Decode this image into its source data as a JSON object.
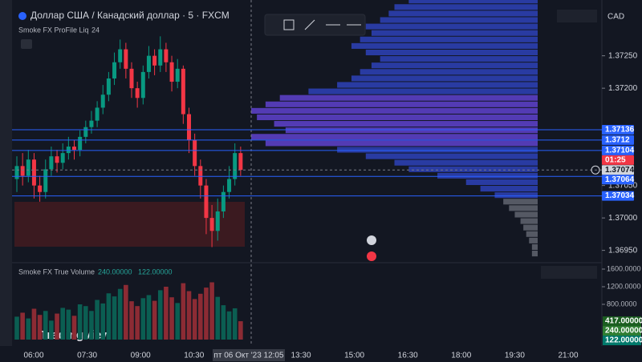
{
  "header": {
    "symbol": "Доллар США / Канадский доллар · 5 · FXCM",
    "indicator": "Smoke FX ProFile Liq",
    "indicator_param": "24",
    "currency": "CAD"
  },
  "chart_data": {
    "type": "candlestick",
    "ylim": [
      1.36931,
      1.37336
    ],
    "price_ticks": [
      {
        "value": 1.3725,
        "label": "1.37250"
      },
      {
        "value": 1.372,
        "label": "1.37200"
      },
      {
        "value": 1.3705,
        "label": "1.37050"
      },
      {
        "value": 1.37,
        "label": "1.37000"
      },
      {
        "value": 1.3695,
        "label": "1.36950"
      }
    ],
    "candles": [
      [
        1.3706,
        1.37095,
        1.3704,
        1.3708
      ],
      [
        1.3708,
        1.371,
        1.3705,
        1.37065
      ],
      [
        1.37065,
        1.37105,
        1.37055,
        1.3709
      ],
      [
        1.3709,
        1.371,
        1.3703,
        1.3705
      ],
      [
        1.3705,
        1.37065,
        1.37025,
        1.3704
      ],
      [
        1.3704,
        1.3709,
        1.3703,
        1.37075
      ],
      [
        1.37075,
        1.3711,
        1.37065,
        1.37095
      ],
      [
        1.37095,
        1.37105,
        1.3707,
        1.37085
      ],
      [
        1.37085,
        1.37115,
        1.37075,
        1.371
      ],
      [
        1.371,
        1.37125,
        1.3709,
        1.3711
      ],
      [
        1.3711,
        1.3712,
        1.3709,
        1.37105
      ],
      [
        1.37105,
        1.37135,
        1.37095,
        1.37125
      ],
      [
        1.37125,
        1.3715,
        1.37115,
        1.3714
      ],
      [
        1.3714,
        1.37165,
        1.3713,
        1.3715
      ],
      [
        1.3715,
        1.3718,
        1.3714,
        1.3717
      ],
      [
        1.3717,
        1.37205,
        1.3716,
        1.3719
      ],
      [
        1.3719,
        1.37225,
        1.3718,
        1.37215
      ],
      [
        1.37215,
        1.37255,
        1.37205,
        1.3724
      ],
      [
        1.3724,
        1.37275,
        1.3723,
        1.3726
      ],
      [
        1.3726,
        1.3727,
        1.37215,
        1.3723
      ],
      [
        1.3723,
        1.3724,
        1.37185,
        1.372
      ],
      [
        1.372,
        1.3721,
        1.3717,
        1.37185
      ],
      [
        1.37185,
        1.37235,
        1.37175,
        1.37225
      ],
      [
        1.37225,
        1.37265,
        1.37215,
        1.3725
      ],
      [
        1.3725,
        1.3726,
        1.3722,
        1.37235
      ],
      [
        1.37235,
        1.3728,
        1.37225,
        1.3726
      ],
      [
        1.3726,
        1.3727,
        1.37225,
        1.3724
      ],
      [
        1.3724,
        1.3725,
        1.37195,
        1.3721
      ],
      [
        1.3721,
        1.37245,
        1.372,
        1.3723
      ],
      [
        1.3723,
        1.37235,
        1.37145,
        1.3716
      ],
      [
        1.3716,
        1.3717,
        1.371,
        1.3712
      ],
      [
        1.3712,
        1.3713,
        1.37065,
        1.3708
      ],
      [
        1.3708,
        1.3709,
        1.3703,
        1.3705
      ],
      [
        1.3705,
        1.3706,
        1.36975,
        1.37
      ],
      [
        1.37,
        1.3702,
        1.36955,
        1.3698
      ],
      [
        1.3698,
        1.3703,
        1.36965,
        1.3701
      ],
      [
        1.3701,
        1.3705,
        1.37,
        1.3704
      ],
      [
        1.3704,
        1.3708,
        1.3703,
        1.3706
      ],
      [
        1.3706,
        1.37115,
        1.3705,
        1.371
      ],
      [
        1.371,
        1.3711,
        1.37065,
        1.37074
      ]
    ],
    "levels": [
      1.37136,
      1.3712,
      1.37104,
      1.37064,
      1.37034
    ],
    "level_color": "#2962ff",
    "last_price": 1.37074,
    "countdown": "01:25",
    "time_ticks": [
      "06:00",
      "07:30",
      "09:00",
      "10:30",
      "13:30",
      "15:00",
      "16:30",
      "18:00",
      "19:30",
      "21:00"
    ],
    "crosshair_time": "пт 06 Окт '23 12:05",
    "volume_profile": {
      "prices": [
        1.37335,
        1.37325,
        1.37315,
        1.37305,
        1.37295,
        1.37285,
        1.37275,
        1.37265,
        1.37255,
        1.37245,
        1.37235,
        1.37225,
        1.37215,
        1.37205,
        1.37195,
        1.37185,
        1.37175,
        1.37165,
        1.37155,
        1.37145,
        1.37135,
        1.37125,
        1.37115,
        1.37105,
        1.37095,
        1.37085,
        1.37075,
        1.37065,
        1.37055,
        1.37045,
        1.37035,
        1.37025,
        1.37015,
        1.37005,
        1.36995,
        1.36985,
        1.36975,
        1.36965,
        1.36955,
        1.36945
      ],
      "values": [
        45,
        50,
        52,
        55,
        60,
        58,
        62,
        65,
        60,
        55,
        58,
        62,
        65,
        70,
        80,
        90,
        95,
        100,
        98,
        92,
        88,
        100,
        95,
        70,
        60,
        50,
        45,
        35,
        25,
        20,
        15,
        12,
        10,
        8,
        6,
        5,
        4,
        3,
        2,
        2
      ]
    },
    "volume": {
      "title": "Smoke FX True Volume",
      "legend_values": [
        "240.00000",
        "122.00000"
      ],
      "values": [
        520,
        610,
        480,
        700,
        560,
        650,
        430,
        590,
        720,
        680,
        540,
        800,
        760,
        650,
        900,
        820,
        1050,
        980,
        1150,
        1240,
        870,
        760,
        940,
        1010,
        880,
        1120,
        1200,
        960,
        830,
        1280,
        1100,
        920,
        1040,
        1180,
        1300,
        970,
        780,
        640,
        710,
        417
      ],
      "ylim": [
        0,
        1709
      ],
      "yticks": [
        {
          "value": 1600,
          "label": "1600.0000"
        },
        {
          "value": 1200,
          "label": "1200.0000"
        },
        {
          "value": 800,
          "label": "800.0000"
        }
      ],
      "tags": [
        {
          "value": 417,
          "label": "417.00000",
          "color": "#1b5e20"
        },
        {
          "value": 240,
          "label": "240.00000",
          "color": "#2e7d32"
        },
        {
          "value": 122,
          "label": "122.00000",
          "color": "#00796b"
        }
      ]
    }
  },
  "logo": "TradingView"
}
